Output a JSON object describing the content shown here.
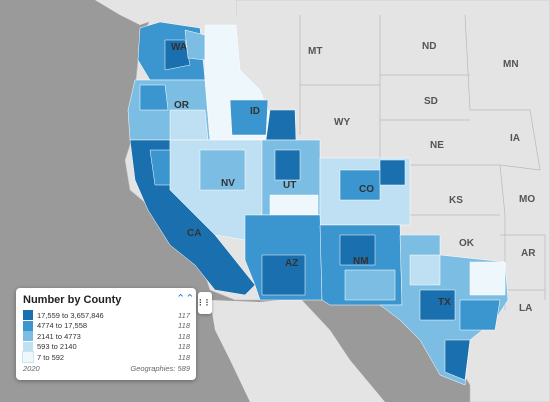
{
  "map": {
    "state_labels": [
      "MT",
      "ND",
      "MN",
      "SD",
      "WY",
      "IA",
      "NE",
      "KS",
      "MO",
      "OK",
      "AR",
      "LA",
      "WA",
      "OR",
      "ID",
      "NV",
      "UT",
      "CO",
      "CA",
      "AZ",
      "NM",
      "TX"
    ]
  },
  "legend": {
    "title": "Number by County",
    "rows": [
      {
        "range": "17,559 to 3,657,846",
        "count": "117",
        "color": "#1a6fae"
      },
      {
        "range": "4774 to 17,558",
        "count": "118",
        "color": "#3b95cf"
      },
      {
        "range": "2141 to 4773",
        "count": "118",
        "color": "#7cbde3"
      },
      {
        "range": "593 to 2140",
        "count": "118",
        "color": "#bfe0f2"
      },
      {
        "range": "7 to 592",
        "count": "118",
        "color": "#eef7fc"
      }
    ],
    "year": "2020",
    "geographies": "Geographies: 589"
  },
  "colors": {
    "ocean": "#9a9a9a",
    "land_no_data": "#e6e6e6",
    "border": "#ffffff"
  }
}
